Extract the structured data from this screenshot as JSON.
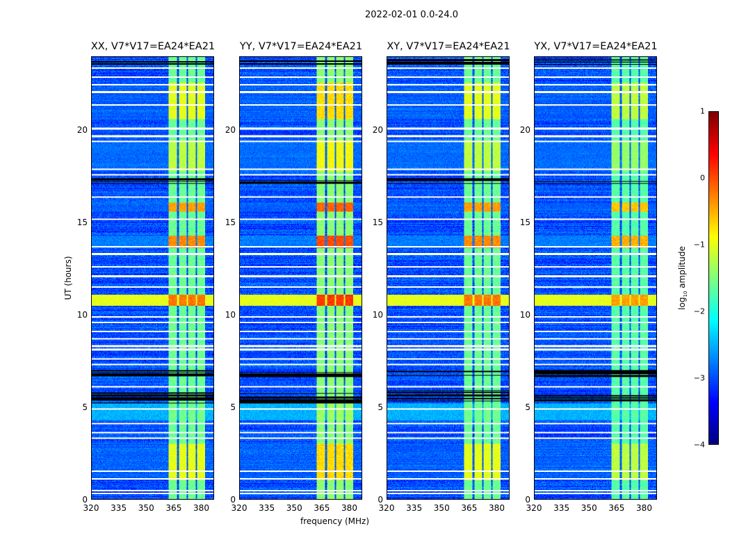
{
  "figure_title": "2022-02-01 0.0-24.0",
  "chart_data": {
    "type": "heatmap",
    "title": "2022-02-01 0.0-24.0",
    "xlabel": "frequency (MHz)",
    "ylabel": "UT (hours)",
    "xlim": [
      320,
      387
    ],
    "ylim": [
      0,
      24
    ],
    "xticks": [
      "320",
      "335",
      "350",
      "365",
      "380"
    ],
    "yticks": [
      "0",
      "5",
      "10",
      "15",
      "20"
    ],
    "colorbar": {
      "label": "log10 amplitude",
      "label_main": "log",
      "label_sub": "10",
      "label_rest": " amplitude",
      "range": [
        -4,
        1
      ],
      "ticks": [
        "1",
        "0",
        "−1",
        "−2",
        "−3",
        "−4"
      ],
      "colormap": "jet"
    },
    "panels": [
      {
        "title": "XX, V7*V17=EA24*EA21",
        "boost": 0
      },
      {
        "title": "YY, V7*V17=EA24*EA21",
        "boost": 0.3
      },
      {
        "title": "XY, V7*V17=EA24*EA21",
        "boost": 0
      },
      {
        "title": "YX, V7*V17=EA24*EA21",
        "boost": -0.2
      }
    ],
    "background_level": -3.0,
    "rfi_band": {
      "freq_range": [
        362.3,
        382.6
      ],
      "level": -1.6,
      "channel_gaps": [
        367.6,
        372.6,
        377.6
      ]
    },
    "hot_intervals": [
      {
        "t": [
          1.0,
          3.0
        ],
        "band": -1.0,
        "all": -3.0
      },
      {
        "t": [
          10.5,
          11.1
        ],
        "band": -0.2,
        "all": -1.0
      },
      {
        "t": [
          13.6,
          14.3
        ],
        "band": -0.3,
        "all": -2.8
      },
      {
        "t": [
          15.6,
          16.1
        ],
        "band": -0.4,
        "all": -3.0
      },
      {
        "t": [
          17.8,
          19.5
        ],
        "band": -1.2,
        "all": -2.9
      },
      {
        "t": [
          20.6,
          22.6
        ],
        "band": -1.0,
        "all": -3.0
      },
      {
        "t": [
          4.3,
          5.2
        ],
        "band": -1.7,
        "all": -2.5
      }
    ],
    "flagged_rows_hours": [
      0.3,
      0.45,
      1.1,
      1.5,
      3.3,
      3.6,
      4.1,
      4.9,
      6.1,
      7.3,
      7.6,
      8.1,
      8.3,
      8.7,
      9.1,
      9.6,
      9.9,
      11.5,
      12.1,
      12.6,
      13.3,
      13.7,
      15.2,
      16.4,
      17.6,
      17.9,
      19.4,
      19.7,
      20.1,
      21.4,
      22.1,
      22.5,
      22.9,
      23.4
    ],
    "zero_rows_hours": [
      [
        5.2,
        5.9
      ],
      [
        6.6,
        7.0
      ],
      [
        17.1,
        17.4
      ],
      [
        23.6,
        23.9
      ]
    ]
  }
}
